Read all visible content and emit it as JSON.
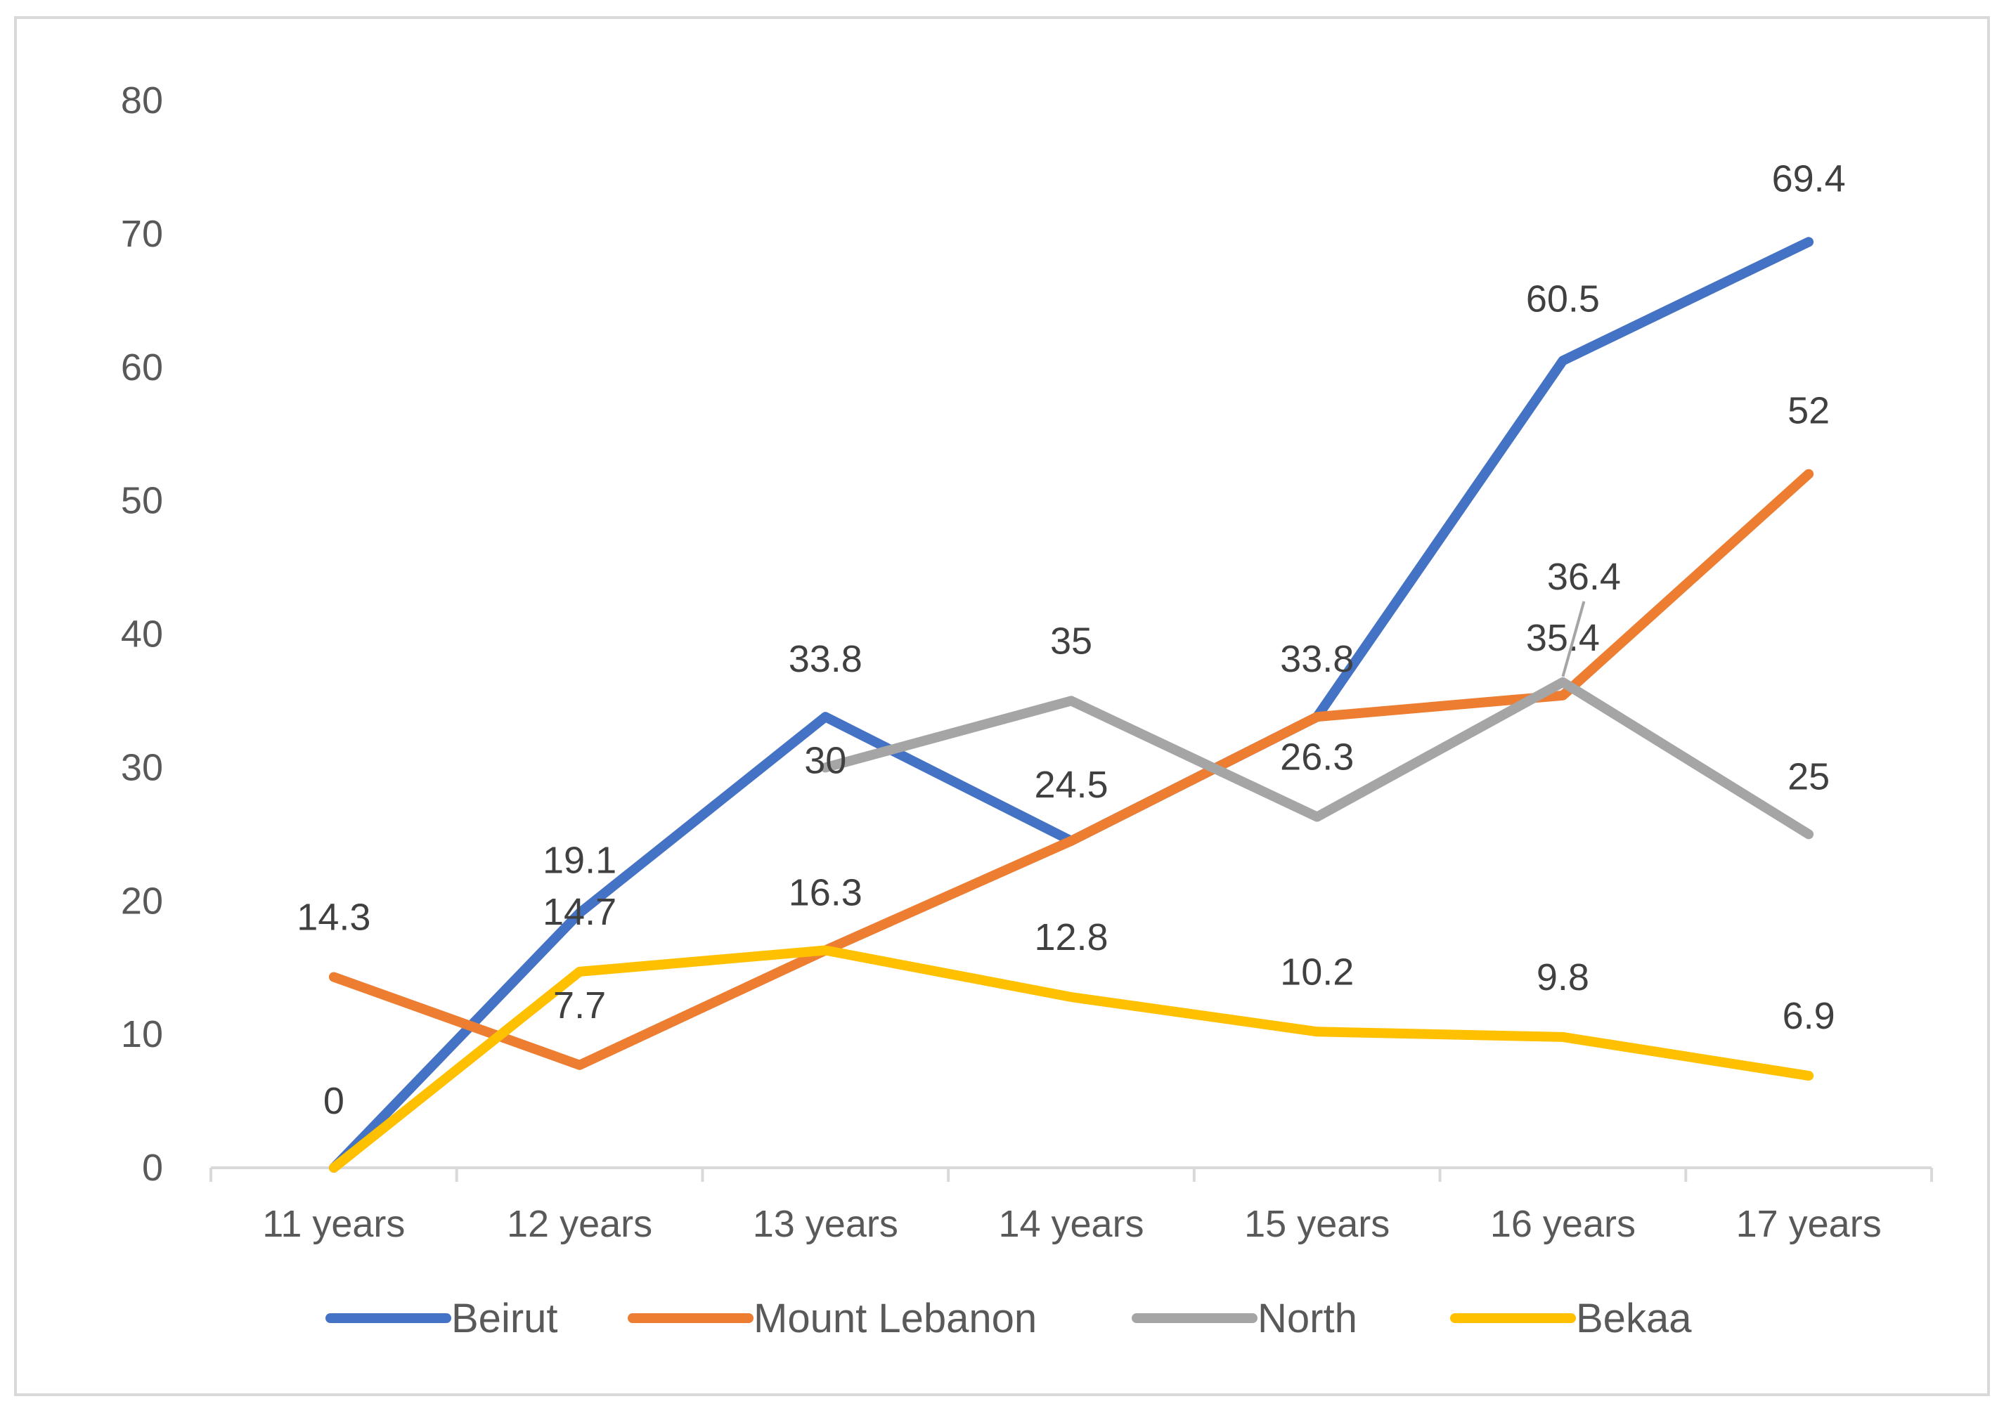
{
  "chart_data": {
    "type": "line",
    "title": "",
    "xlabel": "",
    "ylabel": "",
    "categories": [
      "11 years",
      "12 years",
      "13  years",
      "14 years",
      "15 years",
      "16 years",
      "17 years"
    ],
    "ylim": [
      0,
      80
    ],
    "yticks": [
      0,
      10,
      20,
      30,
      40,
      50,
      60,
      70,
      80
    ],
    "grid": false,
    "legend_position": "bottom",
    "series": [
      {
        "name": "Beirut",
        "color": "#4472C4",
        "values": [
          0,
          19.1,
          33.8,
          24.5,
          33.8,
          60.5,
          69.4
        ],
        "labels": [
          "0",
          "19.1",
          "33.8",
          "24.5",
          "33.8",
          "60.5",
          "69.4"
        ]
      },
      {
        "name": "Mount Lebanon",
        "color": "#ED7D31",
        "values": [
          14.3,
          7.7,
          16.3,
          24.5,
          33.8,
          35.4,
          52
        ],
        "labels": [
          "14.3",
          "7.7",
          null,
          null,
          null,
          "35.4",
          "52"
        ]
      },
      {
        "name": "North",
        "color": "#A5A5A5",
        "values": [
          null,
          null,
          30,
          35,
          26.3,
          36.4,
          25
        ],
        "labels": [
          null,
          null,
          "30",
          "35",
          "26.3",
          "36.4",
          "25"
        ]
      },
      {
        "name": "Bekaa",
        "color": "#FFC000",
        "values": [
          0,
          14.7,
          16.3,
          12.8,
          10.2,
          9.8,
          6.9
        ],
        "labels": [
          null,
          "14.7",
          "16.3",
          "12.8",
          "10.2",
          "9.8",
          "6.9"
        ]
      }
    ]
  }
}
